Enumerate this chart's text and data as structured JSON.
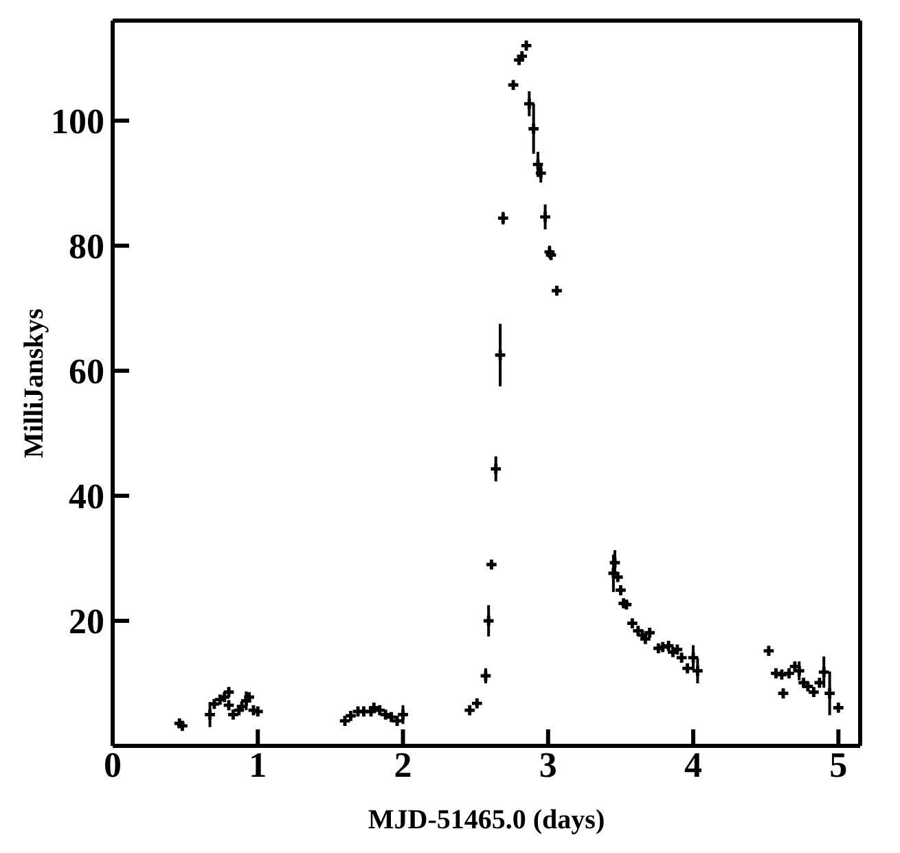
{
  "chart_data": {
    "type": "scatter",
    "xlabel": "MJD-51465.0 (days)",
    "ylabel": "MilliJanskys",
    "xlim": [
      0,
      5.15
    ],
    "xticks": [
      0,
      1,
      2,
      3,
      4,
      5
    ],
    "ylim": [
      0,
      116
    ],
    "yticks": [
      20,
      40,
      60,
      80,
      100
    ],
    "marker": "cross",
    "grid": false,
    "series": [
      {
        "color": "#000000",
        "x": [
          0.46,
          0.48,
          0.67,
          0.7,
          0.74,
          0.77,
          0.8,
          0.8,
          0.83,
          0.87,
          0.89,
          0.92,
          0.94,
          0.97,
          1.0,
          1.6,
          1.64,
          1.69,
          1.73,
          1.78,
          1.8,
          1.84,
          1.88,
          1.92,
          1.96,
          2.0,
          2.46,
          2.51,
          2.57,
          2.59,
          2.61,
          2.64,
          2.67,
          2.69,
          2.76,
          2.8,
          2.82,
          2.85,
          2.87,
          2.9,
          2.93,
          2.95,
          2.98,
          3.01,
          3.02,
          3.06,
          3.45,
          3.46,
          3.48,
          3.5,
          3.52,
          3.54,
          3.58,
          3.62,
          3.65,
          3.67,
          3.7,
          3.76,
          3.79,
          3.83,
          3.86,
          3.89,
          3.92,
          3.96,
          4.0,
          4.03,
          4.52,
          4.57,
          4.61,
          4.62,
          4.66,
          4.7,
          4.73,
          4.76,
          4.79,
          4.83,
          4.87,
          4.9,
          4.94,
          5.0
        ],
        "values": [
          3.6,
          3.2,
          5,
          6.7,
          7.4,
          7.8,
          8.6,
          6.5,
          5,
          5.7,
          6.3,
          7.2,
          7.8,
          5.7,
          5.5,
          4,
          4.8,
          5.5,
          5.5,
          5.5,
          6.1,
          5.7,
          5,
          4.6,
          4,
          5,
          5.7,
          6.8,
          11.2,
          20,
          29,
          44.3,
          62.5,
          84.4,
          105.7,
          109.7,
          110.3,
          112,
          102.7,
          98.7,
          93,
          91.6,
          84.6,
          79,
          78.5,
          72.8,
          27.6,
          29.3,
          27,
          24.9,
          22.8,
          22.6,
          19.6,
          18.4,
          17.7,
          17.1,
          18.1,
          15.6,
          15.8,
          16,
          15,
          15.4,
          14.1,
          12.4,
          14.1,
          12,
          15.2,
          11.6,
          11.4,
          8.4,
          11.6,
          12.7,
          12,
          10.1,
          9.5,
          8.6,
          10.1,
          11.8,
          8.4,
          6.1
        ],
        "errors": [
          null,
          null,
          2,
          null,
          null,
          null,
          null,
          null,
          null,
          null,
          null,
          1.5,
          null,
          null,
          null,
          null,
          null,
          null,
          null,
          null,
          null,
          null,
          null,
          null,
          null,
          1.5,
          null,
          null,
          1.2,
          2.5,
          null,
          2,
          5,
          1,
          null,
          null,
          null,
          null,
          2,
          4,
          2,
          1.5,
          2,
          1,
          null,
          null,
          3,
          2,
          null,
          null,
          null,
          null,
          null,
          null,
          null,
          null,
          null,
          null,
          null,
          null,
          null,
          null,
          null,
          null,
          2,
          2,
          null,
          null,
          null,
          null,
          null,
          null,
          1.5,
          null,
          null,
          null,
          null,
          2.5,
          3.5,
          null
        ]
      }
    ]
  }
}
